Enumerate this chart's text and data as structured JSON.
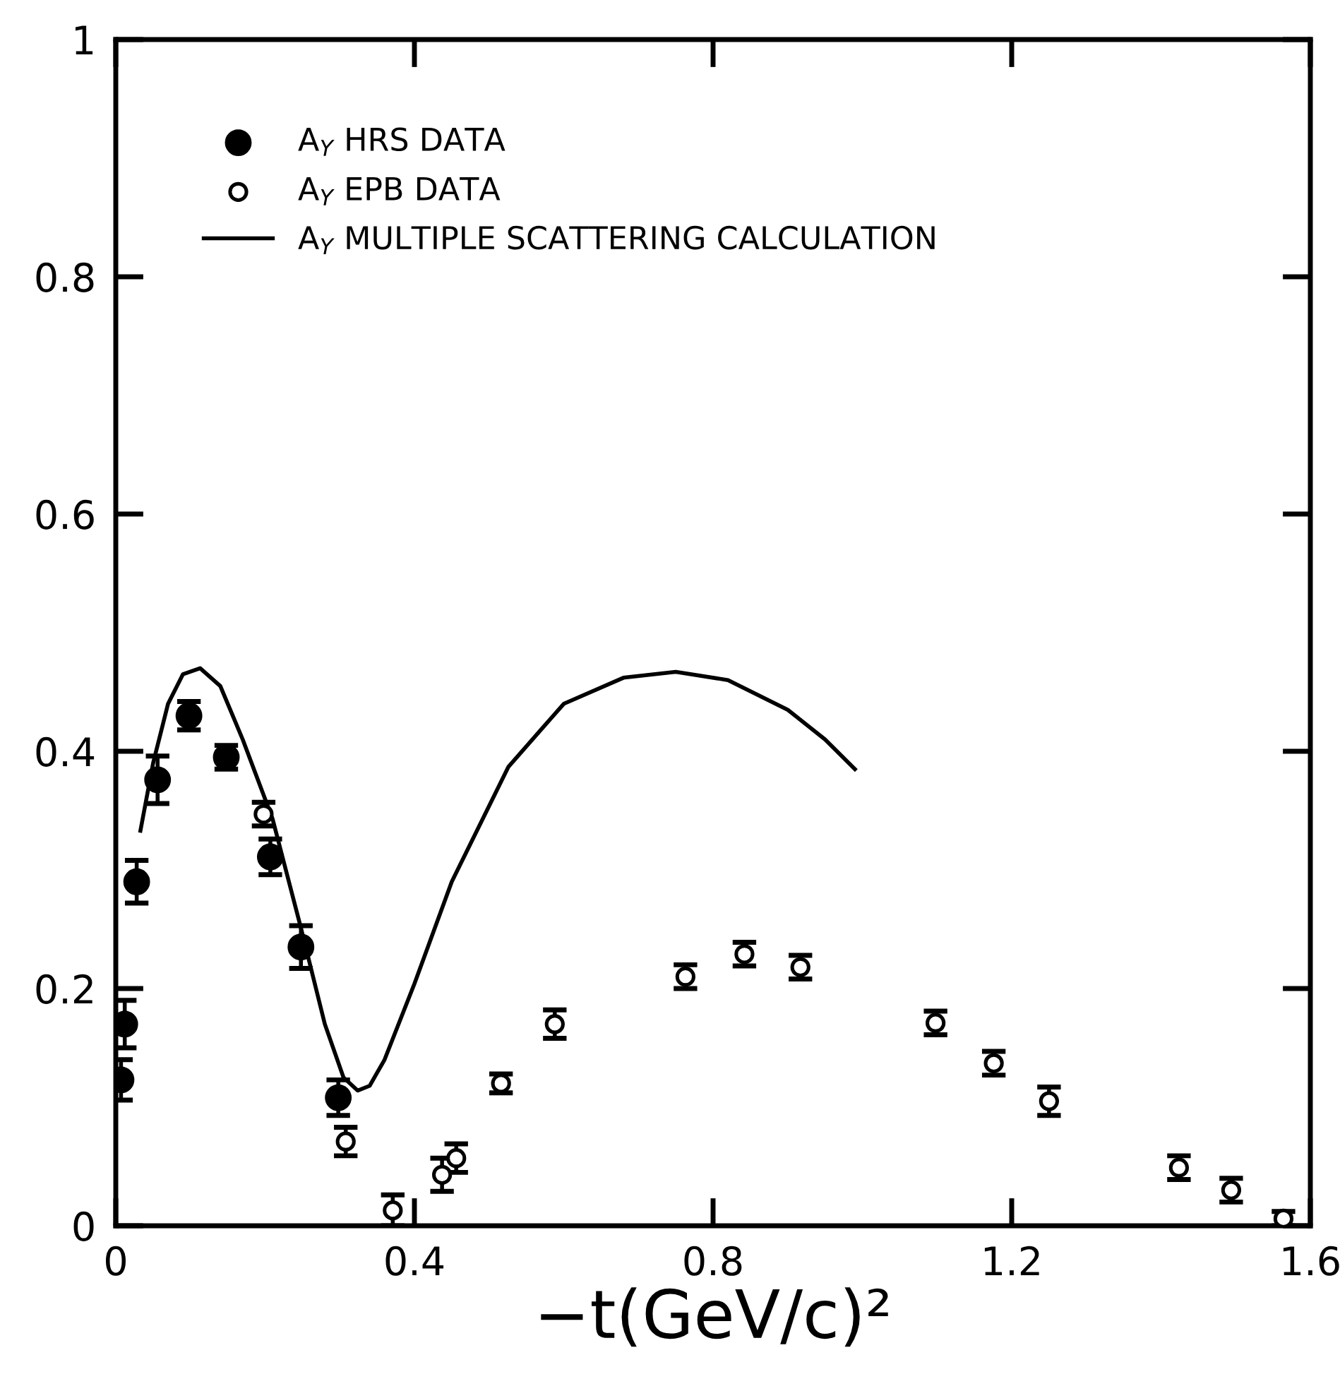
{
  "chart_data": {
    "type": "scatter",
    "xlabel": "−t(GeV/c)²",
    "xlim": [
      0,
      1.6
    ],
    "ylim": [
      0,
      1
    ],
    "xticks": [
      0,
      0.4,
      0.8,
      1.2,
      1.6
    ],
    "yticks": [
      0,
      0.2,
      0.4,
      0.6,
      0.8,
      1
    ],
    "grid": false,
    "legend": "top left",
    "marker": "circle",
    "series": [
      {
        "name": "A$_{Y}$ HRS DATA",
        "color": "#000000",
        "x": [
          0.007,
          0.012,
          0.028,
          0.056,
          0.098,
          0.148,
          0.207,
          0.248,
          0.298
        ],
        "values": [
          0.123,
          0.17,
          0.29,
          0.376,
          0.43,
          0.395,
          0.311,
          0.235,
          0.108
        ],
        "errors": [
          0.017,
          0.02,
          0.018,
          0.02,
          0.012,
          0.01,
          0.015,
          0.018,
          0.015
        ]
      },
      {
        "name": "A$_{Y}$ EPB DATA",
        "color": "#000000",
        "x": [
          0.198,
          0.308,
          0.371,
          0.437,
          0.456,
          0.516,
          0.588,
          0.763,
          0.842,
          0.917,
          1.098,
          1.176,
          1.25,
          1.424,
          1.494,
          1.564
        ],
        "values": [
          0.347,
          0.071,
          0.013,
          0.043,
          0.057,
          0.12,
          0.17,
          0.21,
          0.229,
          0.218,
          0.171,
          0.137,
          0.105,
          0.049,
          0.03,
          0.006
        ],
        "errors": [
          0.01,
          0.012,
          0.013,
          0.014,
          0.012,
          0.008,
          0.012,
          0.01,
          0.01,
          0.01,
          0.01,
          0.01,
          0.012,
          0.01,
          0.01,
          0.006
        ]
      },
      {
        "name": "A$_{Y}$ MULTIPLE SCATTERING CALCULATION",
        "type": "line",
        "color": "#000000",
        "marker": "none",
        "line_style": "solid",
        "x": [
          0.033,
          0.05,
          0.07,
          0.09,
          0.113,
          0.14,
          0.17,
          0.21,
          0.248,
          0.28,
          0.305,
          0.324,
          0.34,
          0.36,
          0.4,
          0.45,
          0.526,
          0.6,
          0.68,
          0.75,
          0.82,
          0.9,
          0.95,
          0.99
        ],
        "values": [
          0.333,
          0.39,
          0.44,
          0.465,
          0.47,
          0.455,
          0.41,
          0.343,
          0.251,
          0.17,
          0.125,
          0.114,
          0.118,
          0.14,
          0.204,
          0.29,
          0.387,
          0.44,
          0.462,
          0.467,
          0.46,
          0.435,
          0.41,
          0.385
        ]
      }
    ]
  }
}
